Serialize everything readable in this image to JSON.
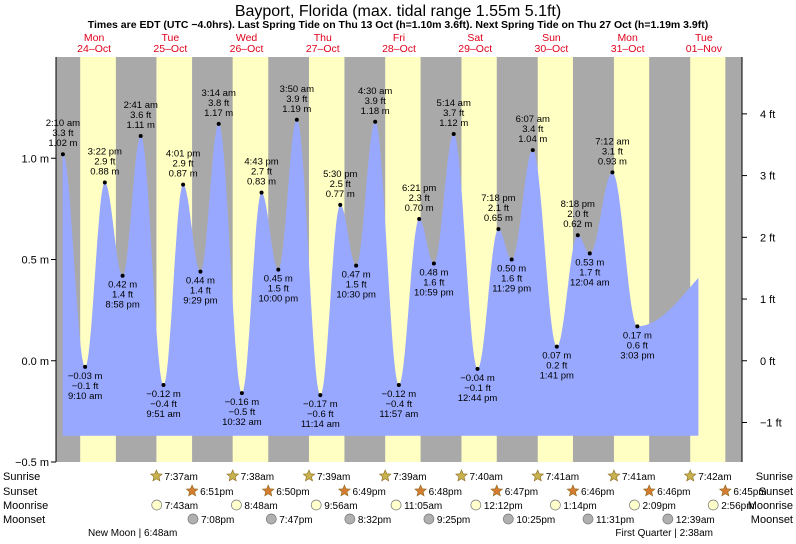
{
  "colors": {
    "night": "#a9a9a9",
    "day": "#ffffc4",
    "water": "#98a8ff",
    "red": "#e0001b",
    "sun": "#c8b24e",
    "sunset": "#d67c30",
    "moonrise": "#ffffcc",
    "moonset": "#b0b0b0"
  },
  "chart_data": {
    "type": "area",
    "title": "Bayport, Florida (max. tidal range 1.55m 5.1ft)",
    "subtitle": "Times are EDT (UTC −4.0hrs). Last Spring Tide on Thu 13 Oct (h=1.10m 3.6ft). Next Spring Tide on Thu 27 Oct (h=1.19m 3.9ft)",
    "time_range_hours": [
      0,
      216
    ],
    "ylim_m": [
      -0.5,
      1.5
    ],
    "left_ticks": [
      {
        "v": -0.5,
        "label": "−0.5 m"
      },
      {
        "v": 0.0,
        "label": "0.0 m"
      },
      {
        "v": 0.5,
        "label": "0.5 m"
      },
      {
        "v": 1.0,
        "label": "1.0 m"
      }
    ],
    "right_ticks": [
      {
        "ft": -1,
        "label": "−1 ft"
      },
      {
        "ft": 0,
        "label": "0 ft"
      },
      {
        "ft": 1,
        "label": "1 ft"
      },
      {
        "ft": 2,
        "label": "2 ft"
      },
      {
        "ft": 3,
        "label": "3 ft"
      },
      {
        "ft": 4,
        "label": "4 ft"
      }
    ],
    "days": [
      {
        "dow": "Mon",
        "date": "24–Oct",
        "sunrise_h": 7.62,
        "sunset_h": 18.85
      },
      {
        "dow": "Tue",
        "date": "25–Oct",
        "sunrise_h": 31.62,
        "sunset_h": 42.85
      },
      {
        "dow": "Wed",
        "date": "26–Oct",
        "sunrise_h": 55.63,
        "sunset_h": 66.83
      },
      {
        "dow": "Thu",
        "date": "27–Oct",
        "sunrise_h": 79.65,
        "sunset_h": 90.82
      },
      {
        "dow": "Fri",
        "date": "28–Oct",
        "sunrise_h": 103.65,
        "sunset_h": 114.8
      },
      {
        "dow": "Sat",
        "date": "29–Oct",
        "sunrise_h": 127.67,
        "sunset_h": 138.78
      },
      {
        "dow": "Sun",
        "date": "30–Oct",
        "sunrise_h": 151.68,
        "sunset_h": 162.77
      },
      {
        "dow": "Mon",
        "date": "31–Oct",
        "sunrise_h": 175.68,
        "sunset_h": 186.77
      },
      {
        "dow": "Tue",
        "date": "01–Nov",
        "sunrise_h": 199.7,
        "sunset_h": 210.75
      }
    ],
    "tide_start_m": 0.38,
    "tide_end_m": 0.55,
    "extremes": [
      {
        "t": 2.17,
        "m": 1.02,
        "time": "2:10 am",
        "mlabel": "1.02 m",
        "ft": "3.3 ft",
        "type": "high"
      },
      {
        "t": 9.17,
        "m": -0.03,
        "time": "9:10 am",
        "mlabel": "−0.03 m",
        "ft": "−0.1 ft",
        "type": "low"
      },
      {
        "t": 15.37,
        "m": 0.88,
        "time": "3:22 pm",
        "mlabel": "0.88 m",
        "ft": "2.9 ft",
        "type": "high"
      },
      {
        "t": 20.97,
        "m": 0.42,
        "time": "8:58 pm",
        "mlabel": "0.42 m",
        "ft": "1.4 ft",
        "type": "low"
      },
      {
        "t": 26.68,
        "m": 1.11,
        "time": "2:41 am",
        "mlabel": "1.11 m",
        "ft": "3.6 ft",
        "type": "high"
      },
      {
        "t": 33.85,
        "m": -0.12,
        "time": "9:51 am",
        "mlabel": "−0.12 m",
        "ft": "−0.4 ft",
        "type": "low"
      },
      {
        "t": 40.02,
        "m": 0.87,
        "time": "4:01 pm",
        "mlabel": "0.87 m",
        "ft": "2.9 ft",
        "type": "high"
      },
      {
        "t": 45.48,
        "m": 0.44,
        "time": "9:29 pm",
        "mlabel": "0.44 m",
        "ft": "1.4 ft",
        "type": "low"
      },
      {
        "t": 51.23,
        "m": 1.17,
        "time": "3:14 am",
        "mlabel": "1.17 m",
        "ft": "3.8 ft",
        "type": "high"
      },
      {
        "t": 58.53,
        "m": -0.16,
        "time": "10:32 am",
        "mlabel": "−0.16 m",
        "ft": "−0.5 ft",
        "type": "low"
      },
      {
        "t": 64.72,
        "m": 0.83,
        "time": "4:43 pm",
        "mlabel": "0.83 m",
        "ft": "2.7 ft",
        "type": "high"
      },
      {
        "t": 70.0,
        "m": 0.45,
        "time": "10:00 pm",
        "mlabel": "0.45 m",
        "ft": "1.5 ft",
        "type": "low"
      },
      {
        "t": 75.83,
        "m": 1.19,
        "time": "3:50 am",
        "mlabel": "1.19 m",
        "ft": "3.9 ft",
        "type": "high"
      },
      {
        "t": 83.23,
        "m": -0.17,
        "time": "11:14 am",
        "mlabel": "−0.17 m",
        "ft": "−0.6 ft",
        "type": "low"
      },
      {
        "t": 89.5,
        "m": 0.77,
        "time": "5:30 pm",
        "mlabel": "0.77 m",
        "ft": "2.5 ft",
        "type": "high"
      },
      {
        "t": 94.5,
        "m": 0.47,
        "time": "10:30 pm",
        "mlabel": "0.47 m",
        "ft": "1.5 ft",
        "type": "low"
      },
      {
        "t": 100.5,
        "m": 1.18,
        "time": "4:30 am",
        "mlabel": "1.18 m",
        "ft": "3.9 ft",
        "type": "high"
      },
      {
        "t": 107.95,
        "m": -0.12,
        "time": "11:57 am",
        "mlabel": "−0.12 m",
        "ft": "−0.4 ft",
        "type": "low"
      },
      {
        "t": 114.35,
        "m": 0.7,
        "time": "6:21 pm",
        "mlabel": "0.70 m",
        "ft": "2.3 ft",
        "type": "high"
      },
      {
        "t": 118.98,
        "m": 0.48,
        "time": "10:59 pm",
        "mlabel": "0.48 m",
        "ft": "1.6 ft",
        "type": "low"
      },
      {
        "t": 125.23,
        "m": 1.12,
        "time": "5:14 am",
        "mlabel": "1.12 m",
        "ft": "3.7 ft",
        "type": "high"
      },
      {
        "t": 132.73,
        "m": -0.04,
        "time": "12:44 pm",
        "mlabel": "−0.04 m",
        "ft": "−0.1 ft",
        "type": "low"
      },
      {
        "t": 139.3,
        "m": 0.65,
        "time": "7:18 pm",
        "mlabel": "0.65 m",
        "ft": "2.1 ft",
        "type": "high"
      },
      {
        "t": 143.48,
        "m": 0.5,
        "time": "11:29 pm",
        "mlabel": "0.50 m",
        "ft": "1.6 ft",
        "type": "low"
      },
      {
        "t": 150.12,
        "m": 1.04,
        "time": "6:07 am",
        "mlabel": "1.04 m",
        "ft": "3.4 ft",
        "type": "high"
      },
      {
        "t": 157.68,
        "m": 0.07,
        "time": "1:41 pm",
        "mlabel": "0.07 m",
        "ft": "0.2 ft",
        "type": "low"
      },
      {
        "t": 164.3,
        "m": 0.62,
        "time": "8:18 pm",
        "mlabel": "0.62 m",
        "ft": "2.0 ft",
        "type": "high"
      },
      {
        "t": 168.07,
        "m": 0.53,
        "time": "12:04 am",
        "mlabel": "0.53 m",
        "ft": "1.7 ft",
        "type": "low"
      },
      {
        "t": 175.2,
        "m": 0.93,
        "time": "7:12 am",
        "mlabel": "0.93 m",
        "ft": "3.1 ft",
        "type": "high"
      },
      {
        "t": 183.05,
        "m": 0.17,
        "time": "3:03 pm",
        "mlabel": "0.17 m",
        "ft": "0.6 ft",
        "type": "low"
      }
    ],
    "legend_rows": [
      "Sunrise",
      "Sunset",
      "Moonrise",
      "Moonset"
    ],
    "events": [
      {
        "row": 0,
        "t": 31.62,
        "label": "7:37am"
      },
      {
        "row": 0,
        "t": 55.63,
        "label": "7:38am"
      },
      {
        "row": 0,
        "t": 79.65,
        "label": "7:39am"
      },
      {
        "row": 0,
        "t": 103.65,
        "label": "7:39am"
      },
      {
        "row": 0,
        "t": 127.67,
        "label": "7:40am"
      },
      {
        "row": 0,
        "t": 151.68,
        "label": "7:41am"
      },
      {
        "row": 0,
        "t": 175.68,
        "label": "7:41am"
      },
      {
        "row": 0,
        "t": 199.7,
        "label": "7:42am"
      },
      {
        "row": 1,
        "t": 42.85,
        "label": "6:51pm"
      },
      {
        "row": 1,
        "t": 66.83,
        "label": "6:50pm"
      },
      {
        "row": 1,
        "t": 90.82,
        "label": "6:49pm"
      },
      {
        "row": 1,
        "t": 114.8,
        "label": "6:48pm"
      },
      {
        "row": 1,
        "t": 138.78,
        "label": "6:47pm"
      },
      {
        "row": 1,
        "t": 162.77,
        "label": "6:46pm"
      },
      {
        "row": 1,
        "t": 186.77,
        "label": "6:46pm"
      },
      {
        "row": 1,
        "t": 210.75,
        "label": "6:45pm"
      },
      {
        "row": 2,
        "t": 31.72,
        "label": "7:43am"
      },
      {
        "row": 2,
        "t": 56.8,
        "label": "8:48am"
      },
      {
        "row": 2,
        "t": 81.93,
        "label": "9:56am"
      },
      {
        "row": 2,
        "t": 107.08,
        "label": "11:05am"
      },
      {
        "row": 2,
        "t": 132.2,
        "label": "12:12pm"
      },
      {
        "row": 2,
        "t": 157.23,
        "label": "1:14pm"
      },
      {
        "row": 2,
        "t": 182.15,
        "label": "2:09pm"
      },
      {
        "row": 2,
        "t": 206.93,
        "label": "2:56pm"
      },
      {
        "row": 3,
        "t": 43.13,
        "label": "7:08pm"
      },
      {
        "row": 3,
        "t": 67.78,
        "label": "7:47pm"
      },
      {
        "row": 3,
        "t": 92.53,
        "label": "8:32pm"
      },
      {
        "row": 3,
        "t": 117.42,
        "label": "9:25pm"
      },
      {
        "row": 3,
        "t": 142.42,
        "label": "10:25pm"
      },
      {
        "row": 3,
        "t": 167.52,
        "label": "11:31pm"
      },
      {
        "row": 3,
        "t": 192.65,
        "label": "12:39am"
      }
    ],
    "moon_phases": [
      {
        "label": "New Moon | 6:48am",
        "anchor": "start"
      },
      {
        "label": "First Quarter | 2:38am",
        "anchor": "end"
      }
    ]
  }
}
